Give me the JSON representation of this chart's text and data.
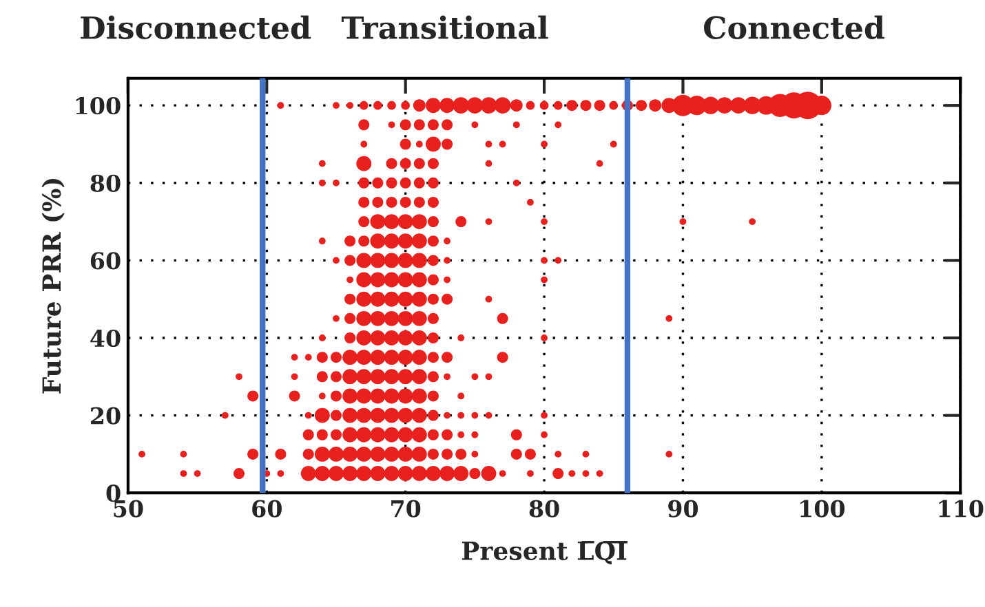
{
  "chart_data": {
    "type": "bubble",
    "xlabel": "Present L̅Q̅I̅",
    "ylabel": "Future PRR (%)",
    "annotations": [
      "Disconnected",
      "Transitional",
      "Connected"
    ],
    "xlim": [
      50,
      110
    ],
    "xticks": [
      50,
      60,
      70,
      80,
      90,
      100,
      110
    ],
    "ylim": [
      0,
      107
    ],
    "yticks": [
      0,
      20,
      40,
      60,
      80,
      100
    ],
    "grid": true,
    "ref_lines": [
      {
        "axis": "x",
        "value": 59.7,
        "color": "#4472c4",
        "line_style": "solid"
      },
      {
        "axis": "x",
        "value": 86,
        "color": "#4472c4",
        "line_style": "solid"
      }
    ],
    "series": [
      {
        "color": "#e8201e",
        "x": [
          61,
          65,
          66,
          67,
          68,
          69,
          70,
          71,
          72,
          73,
          74,
          75,
          76,
          77,
          78,
          79,
          80,
          81,
          82,
          83,
          84,
          85,
          86,
          87,
          88,
          89,
          90,
          91,
          92,
          93,
          94,
          95,
          96,
          97,
          98,
          99,
          100
        ],
        "values": [
          100,
          100,
          100,
          100,
          100,
          100,
          100,
          100,
          100,
          100,
          100,
          100,
          100,
          100,
          100,
          100,
          100,
          100,
          100,
          100,
          100,
          100,
          100,
          100,
          100,
          100,
          100,
          100,
          100,
          100,
          100,
          100,
          100,
          100,
          100,
          100,
          100
        ],
        "sizes": [
          0.06,
          0.06,
          0.06,
          0.1,
          0.1,
          0.1,
          0.1,
          0.2,
          0.3,
          0.3,
          0.35,
          0.35,
          0.35,
          0.35,
          0.2,
          0.1,
          0.1,
          0.1,
          0.16,
          0.16,
          0.16,
          0.1,
          0.16,
          0.16,
          0.2,
          0.3,
          0.6,
          0.5,
          0.4,
          0.35,
          0.35,
          0.4,
          0.45,
          0.7,
          0.9,
          1,
          0.5
        ]
      },
      {
        "color": "#e8201e",
        "x": [
          67,
          69,
          70,
          71,
          72,
          73,
          75,
          78,
          81
        ],
        "values": [
          95,
          95,
          95,
          95,
          95,
          95,
          95,
          95,
          95
        ],
        "sizes": [
          0.16,
          0.06,
          0.16,
          0.16,
          0.16,
          0.16,
          0.06,
          0.06,
          0.06
        ]
      },
      {
        "color": "#e8201e",
        "x": [
          67,
          70,
          71,
          72,
          73,
          76,
          77,
          80,
          85
        ],
        "values": [
          90,
          90,
          90,
          90,
          90,
          90,
          90,
          90,
          90
        ],
        "sizes": [
          0.06,
          0.16,
          0.06,
          0.3,
          0.16,
          0.06,
          0.06,
          0.06,
          0.06
        ]
      },
      {
        "color": "#e8201e",
        "x": [
          64,
          67,
          69,
          70,
          71,
          72,
          76,
          84
        ],
        "values": [
          85,
          85,
          85,
          85,
          85,
          85,
          85,
          85
        ],
        "sizes": [
          0.06,
          0.3,
          0.16,
          0.16,
          0.16,
          0.16,
          0.06,
          0.06
        ]
      },
      {
        "color": "#e8201e",
        "x": [
          64,
          65,
          67,
          68,
          69,
          70,
          71,
          72,
          78
        ],
        "values": [
          80,
          80,
          80,
          80,
          80,
          80,
          80,
          80,
          80
        ],
        "sizes": [
          0.06,
          0.06,
          0.16,
          0.16,
          0.16,
          0.16,
          0.16,
          0.16,
          0.06
        ]
      },
      {
        "color": "#e8201e",
        "x": [
          67,
          68,
          69,
          70,
          71,
          72,
          79
        ],
        "values": [
          75,
          75,
          75,
          75,
          75,
          75,
          75
        ],
        "sizes": [
          0.16,
          0.16,
          0.16,
          0.16,
          0.16,
          0.16,
          0.06
        ]
      },
      {
        "color": "#e8201e",
        "x": [
          67,
          68,
          69,
          70,
          71,
          72,
          74,
          76,
          80,
          90,
          95
        ],
        "values": [
          70,
          70,
          70,
          70,
          70,
          70,
          70,
          70,
          70,
          70,
          70
        ],
        "sizes": [
          0.16,
          0.3,
          0.3,
          0.3,
          0.3,
          0.16,
          0.16,
          0.06,
          0.06,
          0.06,
          0.06
        ]
      },
      {
        "color": "#e8201e",
        "x": [
          64,
          66,
          67,
          68,
          69,
          70,
          71,
          72,
          73
        ],
        "values": [
          65,
          65,
          65,
          65,
          65,
          65,
          65,
          65,
          65
        ],
        "sizes": [
          0.06,
          0.16,
          0.16,
          0.3,
          0.3,
          0.3,
          0.3,
          0.16,
          0.06
        ]
      },
      {
        "color": "#e8201e",
        "x": [
          65,
          66,
          67,
          68,
          69,
          70,
          71,
          72,
          73,
          80,
          81
        ],
        "values": [
          60,
          60,
          60,
          60,
          60,
          60,
          60,
          60,
          60,
          60,
          60
        ],
        "sizes": [
          0.06,
          0.16,
          0.3,
          0.3,
          0.3,
          0.3,
          0.3,
          0.16,
          0.06,
          0.06,
          0.06
        ]
      },
      {
        "color": "#e8201e",
        "x": [
          66,
          67,
          68,
          69,
          70,
          71,
          72,
          73,
          80
        ],
        "values": [
          55,
          55,
          55,
          55,
          55,
          55,
          55,
          55,
          55
        ],
        "sizes": [
          0.06,
          0.3,
          0.3,
          0.3,
          0.3,
          0.3,
          0.16,
          0.06,
          0.06
        ]
      },
      {
        "color": "#e8201e",
        "x": [
          66,
          67,
          68,
          69,
          70,
          71,
          72,
          73,
          76
        ],
        "values": [
          50,
          50,
          50,
          50,
          50,
          50,
          50,
          50,
          50
        ],
        "sizes": [
          0.16,
          0.3,
          0.3,
          0.3,
          0.3,
          0.3,
          0.16,
          0.16,
          0.06
        ]
      },
      {
        "color": "#e8201e",
        "x": [
          65,
          66,
          67,
          68,
          69,
          70,
          71,
          72,
          77,
          89
        ],
        "values": [
          45,
          45,
          45,
          45,
          45,
          45,
          45,
          45,
          45,
          45
        ],
        "sizes": [
          0.06,
          0.16,
          0.3,
          0.3,
          0.3,
          0.3,
          0.3,
          0.16,
          0.16,
          0.06
        ]
      },
      {
        "color": "#e8201e",
        "x": [
          64,
          66,
          67,
          68,
          69,
          70,
          71,
          72,
          74,
          80
        ],
        "values": [
          40,
          40,
          40,
          40,
          40,
          40,
          40,
          40,
          40,
          40
        ],
        "sizes": [
          0.06,
          0.16,
          0.3,
          0.3,
          0.3,
          0.3,
          0.3,
          0.16,
          0.06,
          0.06
        ]
      },
      {
        "color": "#e8201e",
        "x": [
          62,
          63,
          64,
          65,
          66,
          67,
          68,
          69,
          70,
          71,
          72,
          73,
          77
        ],
        "values": [
          35,
          35,
          35,
          35,
          35,
          35,
          35,
          35,
          35,
          35,
          35,
          35,
          35
        ],
        "sizes": [
          0.06,
          0.06,
          0.16,
          0.16,
          0.3,
          0.3,
          0.3,
          0.3,
          0.3,
          0.3,
          0.16,
          0.16,
          0.16
        ]
      },
      {
        "color": "#e8201e",
        "x": [
          58,
          62,
          64,
          65,
          66,
          67,
          68,
          69,
          70,
          71,
          72,
          73,
          75,
          76
        ],
        "values": [
          30,
          30,
          30,
          30,
          30,
          30,
          30,
          30,
          30,
          30,
          30,
          30,
          30,
          30
        ],
        "sizes": [
          0.06,
          0.06,
          0.16,
          0.16,
          0.3,
          0.3,
          0.3,
          0.3,
          0.3,
          0.3,
          0.16,
          0.06,
          0.06,
          0.06
        ]
      },
      {
        "color": "#e8201e",
        "x": [
          59,
          62,
          64,
          65,
          66,
          67,
          68,
          69,
          70,
          71,
          72,
          74
        ],
        "values": [
          25,
          25,
          25,
          25,
          25,
          25,
          25,
          25,
          25,
          25,
          25,
          25
        ],
        "sizes": [
          0.16,
          0.16,
          0.06,
          0.16,
          0.3,
          0.3,
          0.3,
          0.3,
          0.3,
          0.3,
          0.16,
          0.06
        ]
      },
      {
        "color": "#e8201e",
        "x": [
          57,
          63,
          64,
          65,
          66,
          67,
          68,
          69,
          70,
          71,
          72,
          73,
          74,
          75,
          76,
          80
        ],
        "values": [
          20,
          20,
          20,
          20,
          20,
          20,
          20,
          20,
          20,
          20,
          20,
          20,
          20,
          20,
          20,
          20
        ],
        "sizes": [
          0.06,
          0.06,
          0.3,
          0.16,
          0.3,
          0.3,
          0.3,
          0.3,
          0.3,
          0.3,
          0.16,
          0.06,
          0.06,
          0.06,
          0.06,
          0.06
        ]
      },
      {
        "color": "#e8201e",
        "x": [
          63,
          64,
          65,
          66,
          67,
          68,
          69,
          70,
          71,
          72,
          73,
          74,
          75,
          78,
          80
        ],
        "values": [
          15,
          15,
          15,
          15,
          15,
          15,
          15,
          15,
          15,
          15,
          15,
          15,
          15,
          15,
          15
        ],
        "sizes": [
          0.16,
          0.16,
          0.16,
          0.3,
          0.3,
          0.3,
          0.3,
          0.3,
          0.3,
          0.16,
          0.16,
          0.06,
          0.06,
          0.16,
          0.06
        ]
      },
      {
        "color": "#e8201e",
        "x": [
          51,
          54,
          59,
          61,
          63,
          64,
          65,
          66,
          67,
          68,
          69,
          70,
          71,
          72,
          73,
          74,
          75,
          78,
          79,
          81,
          83,
          89
        ],
        "values": [
          10,
          10,
          10,
          10,
          10,
          10,
          10,
          10,
          10,
          10,
          10,
          10,
          10,
          10,
          10,
          10,
          10,
          10,
          10,
          10,
          10,
          10
        ],
        "sizes": [
          0.06,
          0.06,
          0.16,
          0.16,
          0.16,
          0.3,
          0.3,
          0.3,
          0.3,
          0.3,
          0.3,
          0.3,
          0.3,
          0.16,
          0.16,
          0.16,
          0.06,
          0.16,
          0.16,
          0.06,
          0.06,
          0.06
        ]
      },
      {
        "color": "#e8201e",
        "x": [
          54,
          55,
          58,
          60,
          61,
          63,
          64,
          65,
          66,
          67,
          68,
          69,
          70,
          71,
          72,
          73,
          74,
          75,
          76,
          77,
          79,
          81,
          82,
          83,
          84
        ],
        "values": [
          5,
          5,
          5,
          5,
          5,
          5,
          5,
          5,
          5,
          5,
          5,
          5,
          5,
          5,
          5,
          5,
          5,
          5,
          5,
          5,
          5,
          5,
          5,
          5,
          5
        ],
        "sizes": [
          0.06,
          0.06,
          0.16,
          0.06,
          0.06,
          0.3,
          0.3,
          0.3,
          0.3,
          0.3,
          0.3,
          0.3,
          0.3,
          0.3,
          0.3,
          0.3,
          0.3,
          0.16,
          0.3,
          0.06,
          0.06,
          0.16,
          0.06,
          0.06,
          0.06
        ]
      }
    ]
  }
}
